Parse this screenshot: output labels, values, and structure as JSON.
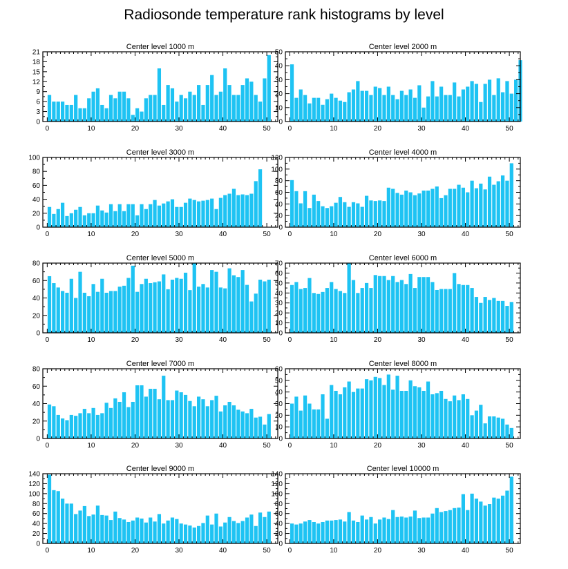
{
  "title": "Radiosonde temperature rank histograms by level",
  "colors": {
    "bar": "#1ec3f3",
    "axis": "#000000",
    "background": "#ffffff"
  },
  "chart_data": [
    {
      "type": "bar",
      "title": "Center level 1000 m",
      "xlim": [
        -1,
        52.5
      ],
      "ylim": [
        0,
        21
      ],
      "xticks": [
        0,
        10,
        20,
        30,
        40,
        50
      ],
      "yticks": [
        0,
        3,
        6,
        9,
        12,
        15,
        18,
        21
      ],
      "values": [
        8,
        6,
        6,
        6,
        5,
        5,
        8,
        4,
        4,
        7,
        9,
        10,
        5,
        4,
        8,
        7,
        9,
        9,
        7,
        2,
        4,
        3,
        7,
        8,
        8,
        16,
        5,
        11,
        10,
        6,
        8,
        7,
        9,
        8,
        11,
        5,
        11,
        14,
        8,
        9,
        16,
        11,
        8,
        8,
        11,
        13,
        12,
        8,
        6,
        13,
        20
      ]
    },
    {
      "type": "bar",
      "title": "Center level 2000 m",
      "xlim": [
        -1,
        52.5
      ],
      "ylim": [
        0,
        50
      ],
      "xticks": [
        0,
        10,
        20,
        30,
        40,
        50
      ],
      "yticks": [
        0,
        10,
        20,
        30,
        40,
        50
      ],
      "values": [
        41,
        17,
        23,
        19,
        13,
        17,
        17,
        12,
        16,
        20,
        17,
        15,
        14,
        21,
        23,
        29,
        22,
        22,
        19,
        25,
        24,
        19,
        25,
        19,
        16,
        22,
        19,
        23,
        17,
        26,
        10,
        18,
        29,
        18,
        25,
        19,
        19,
        28,
        18,
        23,
        25,
        29,
        27,
        14,
        27,
        30,
        19,
        31,
        21,
        29,
        20,
        30,
        44
      ]
    },
    {
      "type": "bar",
      "title": "Center level 3000 m",
      "xlim": [
        -1,
        52.5
      ],
      "ylim": [
        0,
        100
      ],
      "xticks": [
        0,
        10,
        20,
        30,
        40,
        50
      ],
      "yticks": [
        0,
        20,
        40,
        60,
        80,
        100
      ],
      "values": [
        29,
        19,
        26,
        35,
        16,
        20,
        25,
        29,
        17,
        20,
        20,
        31,
        24,
        21,
        33,
        23,
        33,
        23,
        33,
        33,
        17,
        33,
        26,
        33,
        39,
        31,
        34,
        37,
        40,
        29,
        29,
        35,
        41,
        39,
        37,
        38,
        39,
        41,
        26,
        42,
        46,
        48,
        55,
        46,
        47,
        46,
        48,
        66,
        83
      ]
    },
    {
      "type": "bar",
      "title": "Center level 4000 m",
      "xlim": [
        -1,
        52.5
      ],
      "ylim": [
        0,
        120
      ],
      "xticks": [
        0,
        10,
        20,
        30,
        40,
        50
      ],
      "yticks": [
        0,
        20,
        40,
        60,
        80,
        100,
        120
      ],
      "values": [
        81,
        62,
        41,
        62,
        33,
        56,
        45,
        36,
        33,
        36,
        42,
        52,
        43,
        35,
        43,
        41,
        35,
        54,
        46,
        45,
        46,
        45,
        68,
        66,
        59,
        56,
        63,
        60,
        55,
        58,
        63,
        63,
        66,
        70,
        50,
        55,
        66,
        66,
        73,
        68,
        60,
        80,
        67,
        75,
        65,
        87,
        73,
        79,
        89,
        80,
        110
      ]
    },
    {
      "type": "bar",
      "title": "Center level 5000 m",
      "xlim": [
        -1,
        52.5
      ],
      "ylim": [
        0,
        80
      ],
      "xticks": [
        0,
        10,
        20,
        30,
        40,
        50
      ],
      "yticks": [
        0,
        20,
        40,
        60,
        80
      ],
      "values": [
        65,
        57,
        52,
        48,
        46,
        62,
        40,
        70,
        46,
        42,
        56,
        47,
        62,
        46,
        48,
        48,
        53,
        54,
        63,
        77,
        47,
        56,
        62,
        57,
        58,
        59,
        67,
        50,
        61,
        63,
        62,
        69,
        49,
        80,
        53,
        56,
        52,
        72,
        70,
        52,
        51,
        74,
        66,
        64,
        72,
        55,
        36,
        45,
        61,
        59,
        61
      ]
    },
    {
      "type": "bar",
      "title": "Center level 6000 m",
      "xlim": [
        -1,
        52.5
      ],
      "ylim": [
        0,
        70
      ],
      "xticks": [
        0,
        10,
        20,
        30,
        40,
        50
      ],
      "yticks": [
        0,
        10,
        20,
        30,
        40,
        50,
        60,
        70
      ],
      "values": [
        48,
        51,
        44,
        45,
        55,
        40,
        39,
        41,
        45,
        51,
        44,
        42,
        40,
        70,
        53,
        40,
        45,
        50,
        45,
        58,
        57,
        57,
        53,
        57,
        51,
        53,
        49,
        59,
        45,
        56,
        56,
        56,
        51,
        43,
        44,
        44,
        44,
        60,
        49,
        48,
        48,
        45,
        36,
        30,
        36,
        33,
        35,
        32,
        32,
        27,
        31
      ]
    },
    {
      "type": "bar",
      "title": "Center level 7000 m",
      "xlim": [
        -1,
        52.5
      ],
      "ylim": [
        0,
        80
      ],
      "xticks": [
        0,
        10,
        20,
        30,
        40,
        50
      ],
      "yticks": [
        0,
        20,
        40,
        60,
        80
      ],
      "values": [
        39,
        37,
        27,
        23,
        21,
        27,
        26,
        29,
        34,
        29,
        35,
        27,
        29,
        41,
        35,
        46,
        42,
        53,
        36,
        42,
        61,
        61,
        48,
        57,
        57,
        45,
        72,
        44,
        44,
        55,
        53,
        50,
        43,
        37,
        48,
        45,
        37,
        44,
        49,
        31,
        38,
        42,
        38,
        33,
        31,
        29,
        34,
        24,
        25,
        16,
        28
      ]
    },
    {
      "type": "bar",
      "title": "Center level 8000 m",
      "xlim": [
        -1,
        52.5
      ],
      "ylim": [
        0,
        60
      ],
      "xticks": [
        0,
        10,
        20,
        30,
        40,
        50
      ],
      "yticks": [
        0,
        10,
        20,
        30,
        40,
        50,
        60
      ],
      "values": [
        30,
        36,
        24,
        37,
        30,
        25,
        25,
        38,
        17,
        46,
        41,
        38,
        44,
        49,
        40,
        43,
        43,
        51,
        50,
        53,
        52,
        46,
        55,
        42,
        54,
        41,
        41,
        50,
        45,
        44,
        41,
        49,
        38,
        39,
        41,
        34,
        32,
        37,
        33,
        38,
        34,
        20,
        24,
        29,
        13,
        19,
        19,
        18,
        17,
        12,
        9
      ]
    },
    {
      "type": "bar",
      "title": "Center level 9000 m",
      "xlim": [
        -1,
        52.5
      ],
      "ylim": [
        0,
        140
      ],
      "xticks": [
        0,
        10,
        20,
        30,
        40,
        50
      ],
      "yticks": [
        0,
        20,
        40,
        60,
        80,
        100,
        120,
        140
      ],
      "values": [
        138,
        107,
        105,
        90,
        80,
        80,
        59,
        66,
        75,
        55,
        58,
        76,
        57,
        56,
        47,
        64,
        51,
        48,
        43,
        46,
        52,
        50,
        42,
        52,
        44,
        59,
        40,
        46,
        52,
        49,
        40,
        38,
        36,
        32,
        35,
        41,
        56,
        38,
        60,
        34,
        42,
        53,
        45,
        41,
        45,
        52,
        58,
        35,
        62,
        53,
        64
      ]
    },
    {
      "type": "bar",
      "title": "Center level 10000 m",
      "xlim": [
        -1,
        52.5
      ],
      "ylim": [
        0,
        140
      ],
      "xticks": [
        0,
        10,
        20,
        30,
        40,
        50
      ],
      "yticks": [
        0,
        20,
        40,
        60,
        80,
        100,
        120,
        140
      ],
      "values": [
        40,
        38,
        40,
        44,
        47,
        43,
        40,
        43,
        46,
        46,
        47,
        48,
        44,
        63,
        46,
        43,
        56,
        48,
        53,
        40,
        48,
        52,
        49,
        67,
        53,
        54,
        52,
        54,
        66,
        51,
        52,
        52,
        60,
        71,
        63,
        65,
        67,
        71,
        72,
        99,
        67,
        100,
        90,
        84,
        76,
        79,
        92,
        90,
        96,
        106,
        134
      ]
    }
  ]
}
